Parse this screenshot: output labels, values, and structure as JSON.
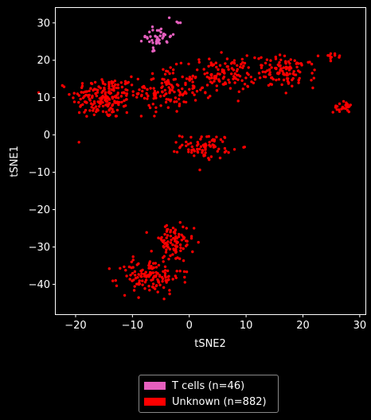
{
  "chart_data": {
    "type": "scatter",
    "title": "",
    "xlabel": "tSNE2",
    "ylabel": "tSNE1",
    "xlim": [
      -23.5,
      31
    ],
    "ylim": [
      -48,
      34
    ],
    "xticks": [
      -20,
      -10,
      0,
      10,
      20,
      30
    ],
    "yticks": [
      -40,
      -30,
      -20,
      -10,
      0,
      10,
      20,
      30
    ],
    "background": "#000000",
    "legend_position": "bottom-center (below axes)",
    "series": [
      {
        "name": "T cells (n=46)",
        "color": "#e65fbe",
        "count": 46,
        "clusters": [
          {
            "cx": -5.5,
            "cy": 26.5,
            "sx": 1.6,
            "sy": 1.9,
            "n": 40
          },
          {
            "cx": -1.5,
            "cy": 30,
            "sx": 0.4,
            "sy": 0.3,
            "n": 3
          },
          {
            "cx": -6.5,
            "cy": 22,
            "sx": 0.8,
            "sy": 1.0,
            "n": 3
          }
        ]
      },
      {
        "name": "Unknown (n=882)",
        "color": "#ff0000",
        "count": 882,
        "clusters": [
          {
            "cx": -15,
            "cy": 10,
            "sx": 3.8,
            "sy": 3.8,
            "n": 190
          },
          {
            "cx": -4,
            "cy": 12,
            "sx": 3.8,
            "sy": 4.0,
            "n": 130
          },
          {
            "cx": 6,
            "cy": 16,
            "sx": 3.8,
            "sy": 3.2,
            "n": 120
          },
          {
            "cx": 17,
            "cy": 17,
            "sx": 3.5,
            "sy": 2.8,
            "n": 110
          },
          {
            "cx": 25.2,
            "cy": 21,
            "sx": 0.8,
            "sy": 0.5,
            "n": 10
          },
          {
            "cx": 27,
            "cy": 7.5,
            "sx": 1.1,
            "sy": 1.0,
            "n": 25
          },
          {
            "cx": 3,
            "cy": -3,
            "sx": 3.0,
            "sy": 2.2,
            "n": 80
          },
          {
            "cx": -3,
            "cy": -29,
            "sx": 2.5,
            "sy": 3.4,
            "n": 90
          },
          {
            "cx": -7,
            "cy": -38,
            "sx": 3.7,
            "sy": 3.0,
            "n": 127
          }
        ]
      }
    ]
  }
}
